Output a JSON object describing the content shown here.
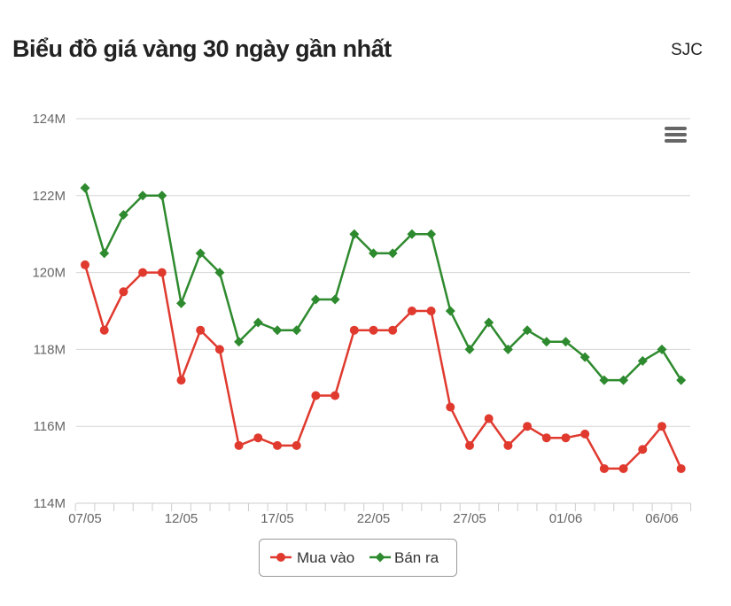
{
  "header": {
    "title": "Biểu đồ giá vàng 30 ngày gần nhất",
    "brand": "SJC"
  },
  "colors": {
    "buy": "#e03a2f",
    "sell": "#2e8a2e",
    "grid": "#d6d6d6",
    "axis": "#cccccc"
  },
  "chart_data": {
    "type": "line",
    "title": "Biểu đồ giá vàng 30 ngày gần nhất",
    "xlabel": "",
    "ylabel": "",
    "x": [
      "07/05",
      "08/05",
      "09/05",
      "10/05",
      "11/05",
      "12/05",
      "13/05",
      "14/05",
      "15/05",
      "16/05",
      "17/05",
      "18/05",
      "19/05",
      "20/05",
      "21/05",
      "22/05",
      "23/05",
      "24/05",
      "25/05",
      "26/05",
      "27/05",
      "28/05",
      "29/05",
      "30/05",
      "31/05",
      "01/06",
      "02/06",
      "03/06",
      "04/06",
      "05/06",
      "06/06",
      "07/06"
    ],
    "x_tick_labels": [
      "07/05",
      "12/05",
      "17/05",
      "22/05",
      "27/05",
      "01/06",
      "06/06"
    ],
    "x_tick_index": [
      0,
      5,
      10,
      15,
      20,
      25,
      30
    ],
    "y_ticks": [
      114,
      116,
      118,
      120,
      122,
      124
    ],
    "y_tick_labels": [
      "114M",
      "116M",
      "118M",
      "120M",
      "122M",
      "124M"
    ],
    "ylim": [
      114,
      124
    ],
    "grid": true,
    "legend": "bottom-center",
    "series": [
      {
        "name": "Mua vào",
        "marker": "circle",
        "values": [
          120.2,
          118.5,
          119.5,
          120,
          120,
          117.2,
          118.5,
          118,
          115.5,
          115.7,
          115.5,
          115.5,
          116.8,
          116.8,
          118.5,
          118.5,
          118.5,
          119,
          119,
          116.5,
          115.5,
          116.2,
          115.5,
          116,
          115.7,
          115.7,
          115.8,
          114.9,
          114.9,
          115.4,
          116,
          114.9
        ]
      },
      {
        "name": "Bán ra",
        "marker": "diamond",
        "values": [
          122.2,
          120.5,
          121.5,
          122,
          122,
          119.2,
          120.5,
          120,
          118.2,
          118.7,
          118.5,
          118.5,
          119.3,
          119.3,
          121,
          120.5,
          120.5,
          121,
          121,
          119,
          118,
          118.7,
          118,
          118.5,
          118.2,
          118.2,
          117.8,
          117.2,
          117.2,
          117.7,
          118,
          117.2
        ]
      }
    ]
  }
}
